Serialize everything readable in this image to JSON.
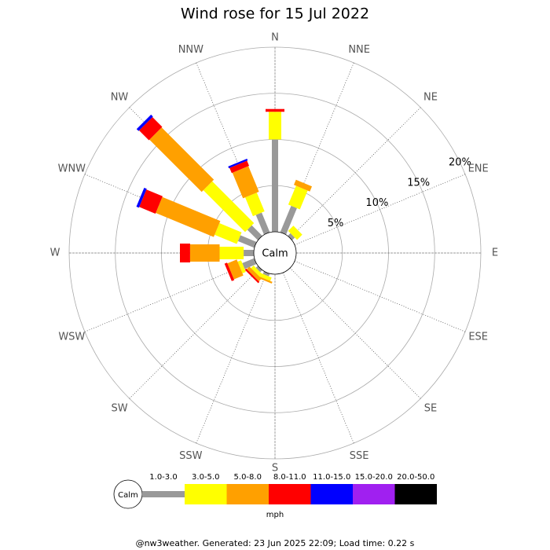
{
  "chart_data": {
    "type": "windrose",
    "title": "Wind rose for 15 Jul 2022",
    "footer": "@nw3weather. Generated: 23 Jun 2025 22:09; Load time: 0.22 s",
    "calm_label": "Calm",
    "unit": "mph",
    "categories": [
      "N",
      "NNE",
      "NE",
      "ENE",
      "E",
      "ESE",
      "SE",
      "SSE",
      "S",
      "SSW",
      "SW",
      "WSW",
      "W",
      "WNW",
      "NW",
      "NNW"
    ],
    "ylim": [
      0,
      20
    ],
    "yticks": [
      {
        "value": 5,
        "label": "5%"
      },
      {
        "value": 10,
        "label": "10%"
      },
      {
        "value": 15,
        "label": "15%"
      },
      {
        "value": 20,
        "label": "20%"
      }
    ],
    "series": [
      {
        "name": "1.0-3.0",
        "color": "#999999",
        "values": [
          10,
          3.1,
          0.4,
          0,
          0,
          0,
          0,
          0,
          0,
          0.3,
          0.3,
          1.4,
          1.1,
          1.9,
          1.6,
          2.3
        ]
      },
      {
        "name": "3.0-5.0",
        "color": "#ffff00",
        "values": [
          3,
          2.2,
          0.8,
          0,
          0,
          0,
          0,
          0,
          0,
          0.4,
          0.4,
          0.4,
          2.6,
          2.6,
          6.4,
          2.2
        ]
      },
      {
        "name": "5.0-8.0",
        "color": "#ffa000",
        "values": [
          0,
          0.6,
          0,
          0,
          0,
          0,
          0,
          0,
          0,
          0.2,
          0.4,
          1.1,
          3.2,
          6.8,
          8.0,
          3.0
        ]
      },
      {
        "name": "8.0-11.0",
        "color": "#ff0000",
        "values": [
          0.3,
          0,
          0,
          0,
          0,
          0,
          0,
          0,
          0,
          0,
          0.2,
          0.3,
          1.1,
          1.9,
          1.5,
          0.6
        ]
      },
      {
        "name": "11.0-15.0",
        "color": "#0000ff",
        "values": [
          0,
          0,
          0,
          0,
          0,
          0,
          0,
          0,
          0,
          0,
          0,
          0,
          0,
          0.3,
          0.3,
          0.2
        ]
      },
      {
        "name": "15.0-20.0",
        "color": "#a020f0",
        "values": [
          0,
          0,
          0,
          0,
          0,
          0,
          0,
          0,
          0,
          0,
          0,
          0,
          0,
          0,
          0,
          0
        ]
      },
      {
        "name": "20.0-50.0",
        "color": "#000000",
        "values": [
          0,
          0,
          0,
          0,
          0,
          0,
          0,
          0,
          0,
          0,
          0,
          0,
          0,
          0,
          0,
          0
        ]
      }
    ]
  }
}
